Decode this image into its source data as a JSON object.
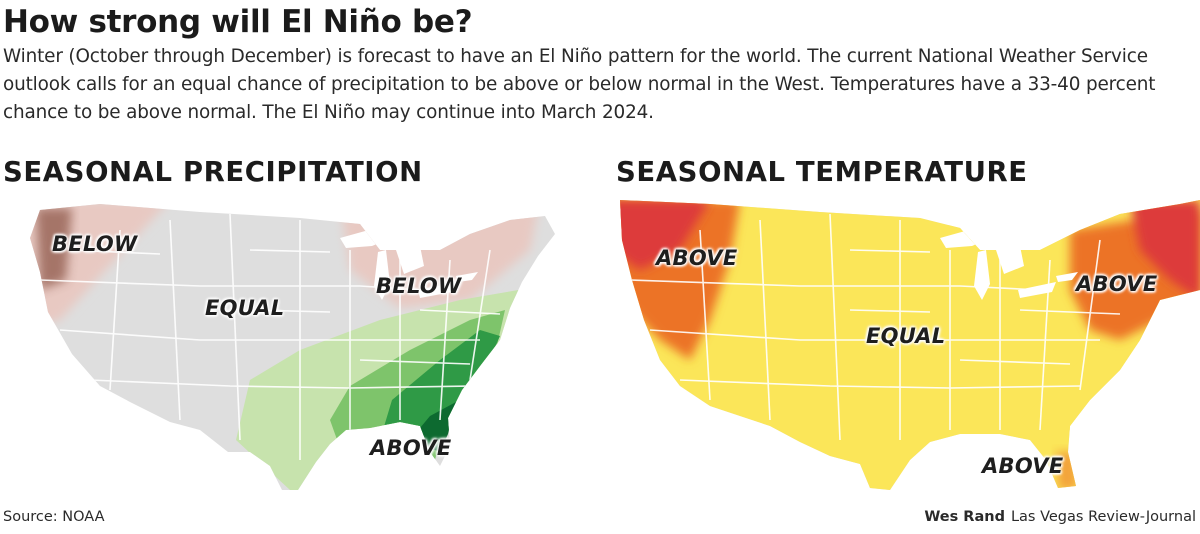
{
  "title": "How strong will El Niño be?",
  "intro": "Winter (October through December) is forecast to have an El Niño pattern for the world. The current National Weather Service outlook calls for an equal chance of precipitation to be above or below normal in the West. Temperatures have a 33-40 percent chance to be above normal. The El Niño may continue into March 2024.",
  "precipitation": {
    "heading": "SEASONAL PRECIPITATION",
    "labels": {
      "northwest": "BELOW",
      "center": "EQUAL",
      "great_lakes": "BELOW",
      "southeast": "ABOVE"
    }
  },
  "temperature": {
    "heading": "SEASONAL TEMPERATURE",
    "labels": {
      "northwest": "ABOVE",
      "center": "EQUAL",
      "northeast": "ABOVE",
      "south": "ABOVE"
    }
  },
  "colors": {
    "land": "#dedede",
    "state_lines": "#ffffff",
    "below_light": "#e8c9c2",
    "below_dark": "#9e6c5e",
    "above_precip_light": "#c7e3ad",
    "above_precip_mid": "#7ec46b",
    "above_precip_dark": "#2f9a46",
    "above_precip_darkest": "#0d6a30",
    "temp_light": "#fbe659",
    "temp_mid": "#f3a33a",
    "temp_orange": "#ec7325",
    "temp_red": "#dd3a3a"
  },
  "footer": {
    "source": "Source: NOAA",
    "author": "Wes Rand",
    "publication": "Las Vegas Review-Journal"
  }
}
